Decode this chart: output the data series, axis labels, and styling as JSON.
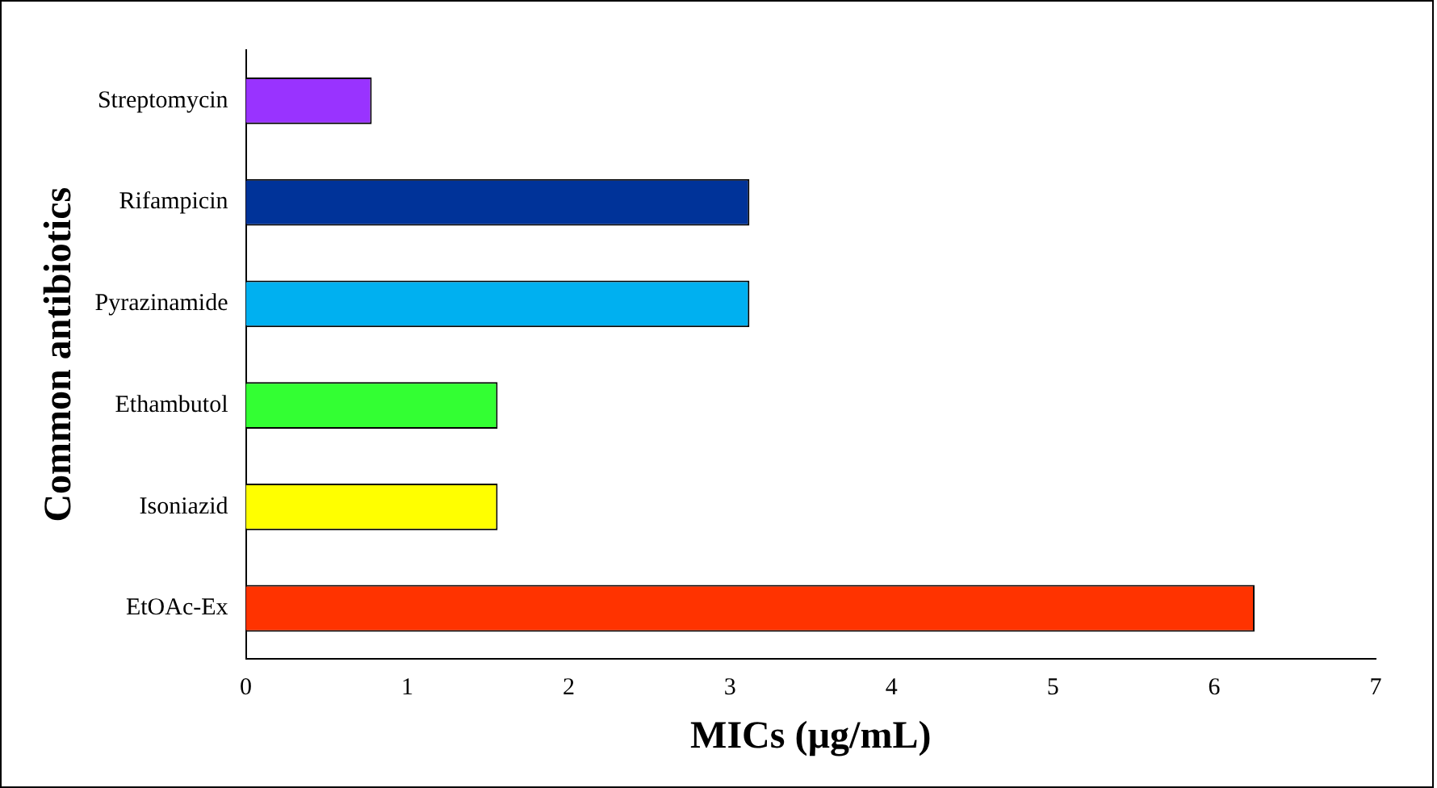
{
  "chart_data": {
    "type": "bar",
    "orientation": "horizontal",
    "xlabel": "MICs (µg/mL)",
    "ylabel": "Common antibiotics",
    "categories": [
      "Streptomycin",
      "Rifampicin",
      "Pyrazinamide",
      "Ethambutol",
      "Isoniazid",
      "EtOAc-Ex"
    ],
    "values": [
      0.78,
      3.12,
      3.12,
      1.56,
      1.56,
      6.25
    ],
    "colors": [
      "#9933ff",
      "#003399",
      "#00b0f0",
      "#33ff33",
      "#ffff00",
      "#ff3300"
    ],
    "xlim": [
      0,
      7
    ],
    "xticks": [
      0,
      1,
      2,
      3,
      4,
      5,
      6,
      7
    ],
    "grid": false,
    "legend": false
  }
}
